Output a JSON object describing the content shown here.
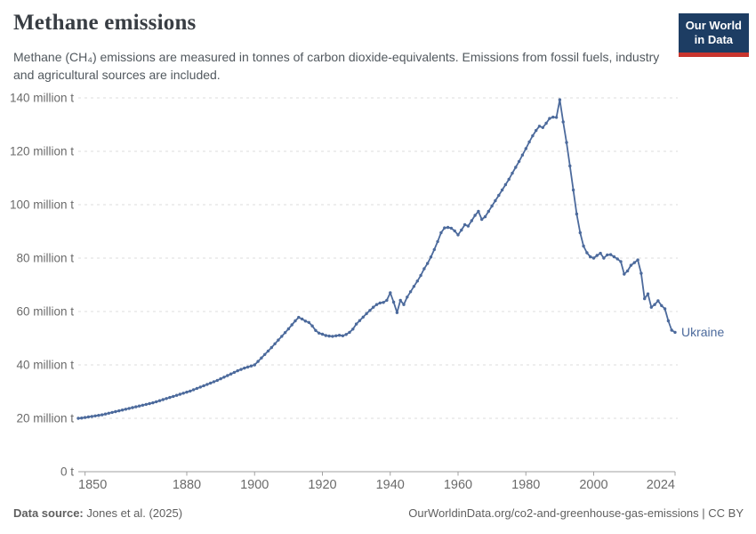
{
  "header": {
    "title": "Methane emissions",
    "subtitle": "Methane (CH₄) emissions are measured in tonnes of carbon dioxide-equivalents. Emissions from fossil fuels, industry and agricultural sources are included.",
    "logo": {
      "line1": "Our World",
      "line2": "in Data",
      "bg_color": "#1d3d63",
      "accent_color": "#c9352e"
    }
  },
  "footer": {
    "source_label": "Data source:",
    "source_value": " Jones et al. (2025)",
    "right_text": "OurWorldinData.org/co2-and-greenhouse-gas-emissions | CC BY"
  },
  "chart_data": {
    "type": "line",
    "title": "Methane emissions",
    "entity": "Ukraine",
    "unit": "tonnes of carbon dioxide-equivalents",
    "grid": true,
    "legend_position": "end-of-line-label",
    "line_color": "#4C6A9C",
    "grid_color": "#dcdcdc",
    "axis_color": "#a1a1a1",
    "tick_label_color": "#6b6b6b",
    "x_range": [
      1848,
      2024
    ],
    "ylim": [
      0,
      140
    ],
    "yticks": [
      {
        "value": 0,
        "label": "0 t"
      },
      {
        "value": 20,
        "label": "20 million t"
      },
      {
        "value": 40,
        "label": "40 million t"
      },
      {
        "value": 60,
        "label": "60 million t"
      },
      {
        "value": 80,
        "label": "80 million t"
      },
      {
        "value": 100,
        "label": "100 million t"
      },
      {
        "value": 120,
        "label": "120 million t"
      },
      {
        "value": 140,
        "label": "140 million t"
      }
    ],
    "xticks": [
      1850,
      1880,
      1900,
      1920,
      1940,
      1960,
      1980,
      2000,
      2024
    ],
    "series": [
      {
        "name": "Ukraine",
        "start_year": 1848,
        "values": [
          20.0,
          20.1,
          20.3,
          20.5,
          20.7,
          20.9,
          21.1,
          21.3,
          21.6,
          21.9,
          22.2,
          22.5,
          22.8,
          23.1,
          23.4,
          23.7,
          24.0,
          24.3,
          24.6,
          24.9,
          25.2,
          25.5,
          25.8,
          26.2,
          26.6,
          27.0,
          27.4,
          27.8,
          28.2,
          28.6,
          29.0,
          29.4,
          29.8,
          30.2,
          30.7,
          31.2,
          31.7,
          32.2,
          32.7,
          33.2,
          33.7,
          34.2,
          34.8,
          35.4,
          36.0,
          36.6,
          37.2,
          37.8,
          38.3,
          38.8,
          39.2,
          39.6,
          40.0,
          41.3,
          42.6,
          43.9,
          45.2,
          46.5,
          47.9,
          49.3,
          50.7,
          52.1,
          53.5,
          55.0,
          56.5,
          57.8,
          57.2,
          56.4,
          55.9,
          54.6,
          52.9,
          51.9,
          51.5,
          51.0,
          50.8,
          50.7,
          50.9,
          51.1,
          50.9,
          51.4,
          52.2,
          53.4,
          55.3,
          56.6,
          57.9,
          59.2,
          60.4,
          61.6,
          62.6,
          63.2,
          63.4,
          64.2,
          67.0,
          63.5,
          59.6,
          64.2,
          62.6,
          65.4,
          67.4,
          69.4,
          71.4,
          73.5,
          76.0,
          78.0,
          80.4,
          83.2,
          86.2,
          89.5,
          91.3,
          91.5,
          91.2,
          90.2,
          88.7,
          90.5,
          92.5,
          92.0,
          94.0,
          96.0,
          97.5,
          94.5,
          95.5,
          97.5,
          99.5,
          101.5,
          103.5,
          105.5,
          107.5,
          109.5,
          111.8,
          114.0,
          116.2,
          118.6,
          121.0,
          123.5,
          125.8,
          127.8,
          129.4,
          128.9,
          130.5,
          132.3,
          132.8,
          132.7,
          139.3,
          131.0,
          123.3,
          114.5,
          105.5,
          96.5,
          89.5,
          84.5,
          82.0,
          80.5,
          80.0,
          81.0,
          81.8,
          80.0,
          81.2,
          81.3,
          80.5,
          79.7,
          78.7,
          74.0,
          75.2,
          77.3,
          78.3,
          79.3,
          74.3,
          64.8,
          66.6,
          61.6,
          62.6,
          64.0,
          62.2,
          61.0,
          56.5,
          53.0,
          52.2
        ]
      }
    ]
  }
}
